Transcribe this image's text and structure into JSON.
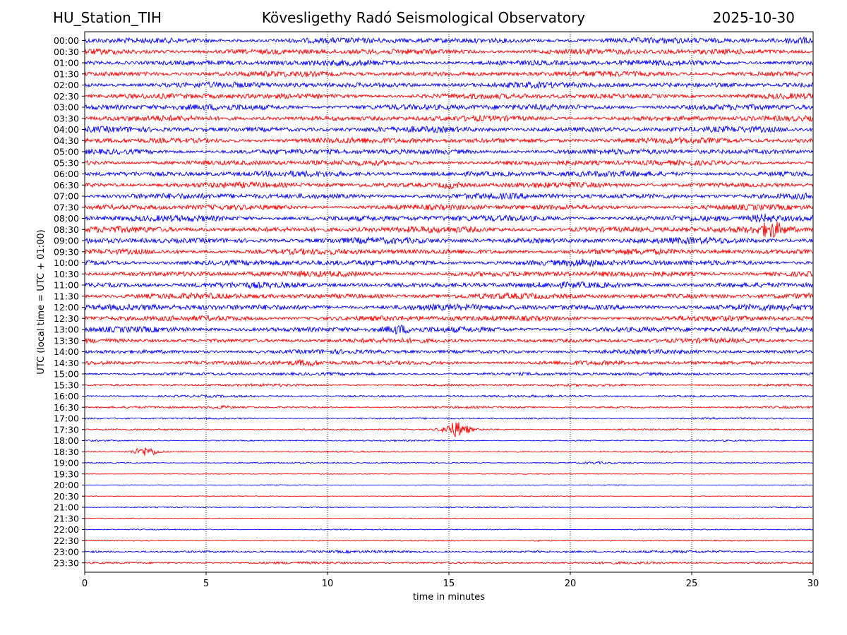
{
  "header": {
    "station": "HU_Station_TIH",
    "observatory": "Kövesligethy Radó Seismological Observatory",
    "date": "2025-10-30"
  },
  "colors": {
    "even_rows": "#0000ff",
    "odd_rows": "#ff0000",
    "grid": "#000000"
  },
  "chart_data": {
    "type": "line",
    "title": "",
    "xlabel": "time in minutes",
    "ylabel": "UTC (local time = UTC + 01:00)",
    "xlim": [
      0,
      30
    ],
    "x_ticks": [
      0,
      5,
      10,
      15,
      20,
      25,
      30
    ],
    "x_tick_labels": [
      "0",
      "5",
      "10",
      "15",
      "20",
      "25",
      "30"
    ],
    "grid": "vertical dotted lines at x ticks",
    "series": [
      {
        "label": "00:00",
        "color": "blue",
        "amplitude": 1.0,
        "events": [
          {
            "t": 29.3,
            "amp": 1.6
          }
        ]
      },
      {
        "label": "00:30",
        "color": "red",
        "amplitude": 1.0,
        "events": []
      },
      {
        "label": "01:00",
        "color": "blue",
        "amplitude": 1.0,
        "events": []
      },
      {
        "label": "01:30",
        "color": "red",
        "amplitude": 0.95,
        "events": []
      },
      {
        "label": "02:00",
        "color": "blue",
        "amplitude": 1.0,
        "events": []
      },
      {
        "label": "02:30",
        "color": "red",
        "amplitude": 0.95,
        "events": []
      },
      {
        "label": "03:00",
        "color": "blue",
        "amplitude": 1.05,
        "events": []
      },
      {
        "label": "03:30",
        "color": "red",
        "amplitude": 0.95,
        "events": []
      },
      {
        "label": "04:00",
        "color": "blue",
        "amplitude": 1.0,
        "events": []
      },
      {
        "label": "04:30",
        "color": "red",
        "amplitude": 1.0,
        "events": []
      },
      {
        "label": "05:00",
        "color": "blue",
        "amplitude": 0.95,
        "events": []
      },
      {
        "label": "05:30",
        "color": "red",
        "amplitude": 0.95,
        "events": []
      },
      {
        "label": "06:00",
        "color": "blue",
        "amplitude": 1.0,
        "events": []
      },
      {
        "label": "06:30",
        "color": "red",
        "amplitude": 0.95,
        "events": [
          {
            "t": 15.1,
            "amp": 1.8
          }
        ]
      },
      {
        "label": "07:00",
        "color": "blue",
        "amplitude": 1.0,
        "events": []
      },
      {
        "label": "07:30",
        "color": "red",
        "amplitude": 0.95,
        "events": []
      },
      {
        "label": "08:00",
        "color": "blue",
        "amplitude": 1.05,
        "events": [
          {
            "t": 28.0,
            "amp": 1.8
          }
        ]
      },
      {
        "label": "08:30",
        "color": "red",
        "amplitude": 1.05,
        "events": [
          {
            "t": 28.3,
            "amp": 3.0
          }
        ]
      },
      {
        "label": "09:00",
        "color": "blue",
        "amplitude": 1.05,
        "events": []
      },
      {
        "label": "09:30",
        "color": "red",
        "amplitude": 1.0,
        "events": []
      },
      {
        "label": "10:00",
        "color": "blue",
        "amplitude": 1.0,
        "events": [
          {
            "t": 20.5,
            "amp": 1.6
          }
        ]
      },
      {
        "label": "10:30",
        "color": "red",
        "amplitude": 1.0,
        "events": []
      },
      {
        "label": "11:00",
        "color": "blue",
        "amplitude": 1.0,
        "events": []
      },
      {
        "label": "11:30",
        "color": "red",
        "amplitude": 1.0,
        "events": []
      },
      {
        "label": "12:00",
        "color": "blue",
        "amplitude": 1.05,
        "events": []
      },
      {
        "label": "12:30",
        "color": "red",
        "amplitude": 0.95,
        "events": []
      },
      {
        "label": "13:00",
        "color": "blue",
        "amplitude": 0.95,
        "events": [
          {
            "t": 12.9,
            "amp": 2.0
          }
        ]
      },
      {
        "label": "13:30",
        "color": "red",
        "amplitude": 0.8,
        "events": []
      },
      {
        "label": "14:00",
        "color": "blue",
        "amplitude": 0.75,
        "events": []
      },
      {
        "label": "14:30",
        "color": "red",
        "amplitude": 0.75,
        "events": [
          {
            "t": 9.2,
            "amp": 1.6
          },
          {
            "t": 4.6,
            "amp": 1.3
          }
        ]
      },
      {
        "label": "15:00",
        "color": "blue",
        "amplitude": 0.55,
        "events": []
      },
      {
        "label": "15:30",
        "color": "red",
        "amplitude": 0.45,
        "events": []
      },
      {
        "label": "16:00",
        "color": "blue",
        "amplitude": 0.4,
        "events": []
      },
      {
        "label": "16:30",
        "color": "red",
        "amplitude": 0.35,
        "events": [
          {
            "t": 5.6,
            "amp": 1.4
          }
        ]
      },
      {
        "label": "17:00",
        "color": "blue",
        "amplitude": 0.3,
        "events": []
      },
      {
        "label": "17:30",
        "color": "red",
        "amplitude": 0.3,
        "events": [
          {
            "t": 15.3,
            "amp": 3.5
          }
        ]
      },
      {
        "label": "18:00",
        "color": "blue",
        "amplitude": 0.25,
        "events": []
      },
      {
        "label": "18:30",
        "color": "red",
        "amplitude": 0.25,
        "events": [
          {
            "t": 2.5,
            "amp": 2.5
          }
        ]
      },
      {
        "label": "19:00",
        "color": "blue",
        "amplitude": 0.25,
        "events": [
          {
            "t": 21.0,
            "amp": 1.2
          }
        ]
      },
      {
        "label": "19:30",
        "color": "red",
        "amplitude": 0.15,
        "events": []
      },
      {
        "label": "20:00",
        "color": "blue",
        "amplitude": 0.15,
        "events": []
      },
      {
        "label": "20:30",
        "color": "red",
        "amplitude": 0.15,
        "events": []
      },
      {
        "label": "21:00",
        "color": "blue",
        "amplitude": 0.2,
        "events": [
          {
            "t": 11.5,
            "amp": 1.0
          },
          {
            "t": 13.8,
            "amp": 1.0
          }
        ]
      },
      {
        "label": "21:30",
        "color": "red",
        "amplitude": 0.15,
        "events": []
      },
      {
        "label": "22:00",
        "color": "blue",
        "amplitude": 0.2,
        "events": []
      },
      {
        "label": "22:30",
        "color": "red",
        "amplitude": 0.2,
        "events": [
          {
            "t": 18.8,
            "amp": 1.2
          }
        ]
      },
      {
        "label": "23:00",
        "color": "blue",
        "amplitude": 0.45,
        "events": []
      },
      {
        "label": "23:30",
        "color": "red",
        "amplitude": 0.4,
        "events": []
      }
    ]
  }
}
